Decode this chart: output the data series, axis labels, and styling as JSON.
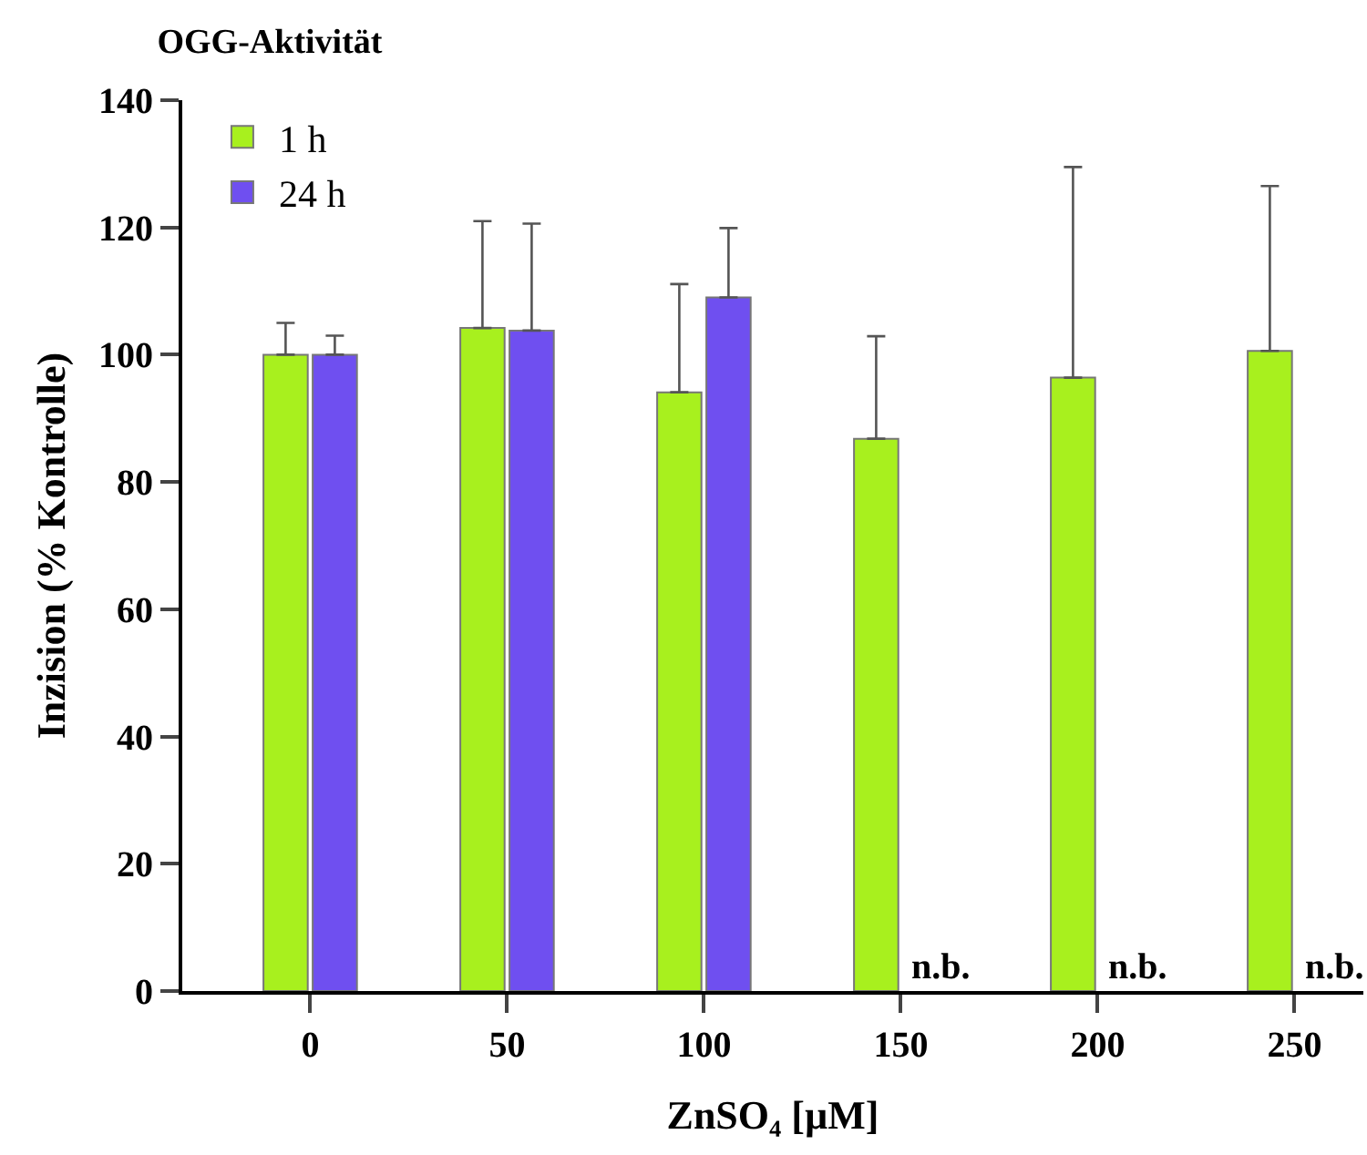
{
  "chart_data": {
    "type": "bar",
    "title": "OGG-Aktivität",
    "xlabel": "ZnSO₄ [µM]",
    "ylabel": "Inzision (% Kontrolle)",
    "categories": [
      "0",
      "50",
      "100",
      "150",
      "200",
      "250"
    ],
    "series": [
      {
        "name": "1 h",
        "color": "#a8f01e",
        "values": [
          100,
          104.2,
          94.1,
          86.8,
          96.4,
          100.6
        ],
        "errors": [
          [
            100,
            105
          ],
          [
            104.2,
            121
          ],
          [
            94.1,
            111.1
          ],
          [
            86.8,
            102.9
          ],
          [
            96.4,
            129.5
          ],
          [
            100.6,
            126.5
          ]
        ]
      },
      {
        "name": "24 h",
        "color": "#6f4ff0",
        "values": [
          100,
          103.8,
          109,
          null,
          null,
          null
        ],
        "errors": [
          [
            100,
            103
          ],
          [
            103.8,
            120.6
          ],
          [
            109,
            119.9
          ],
          null,
          null,
          null
        ]
      }
    ],
    "annotations": [
      {
        "text": "n.b.",
        "x": "150",
        "y": 0
      },
      {
        "text": "n.b.",
        "x": "200",
        "y": 0
      },
      {
        "text": "n.b.",
        "x": "250",
        "y": 0
      }
    ],
    "ylim": [
      0,
      140
    ],
    "yticks": [
      0,
      20,
      40,
      60,
      80,
      100,
      120,
      140
    ],
    "grid": false,
    "legend": "top left"
  }
}
